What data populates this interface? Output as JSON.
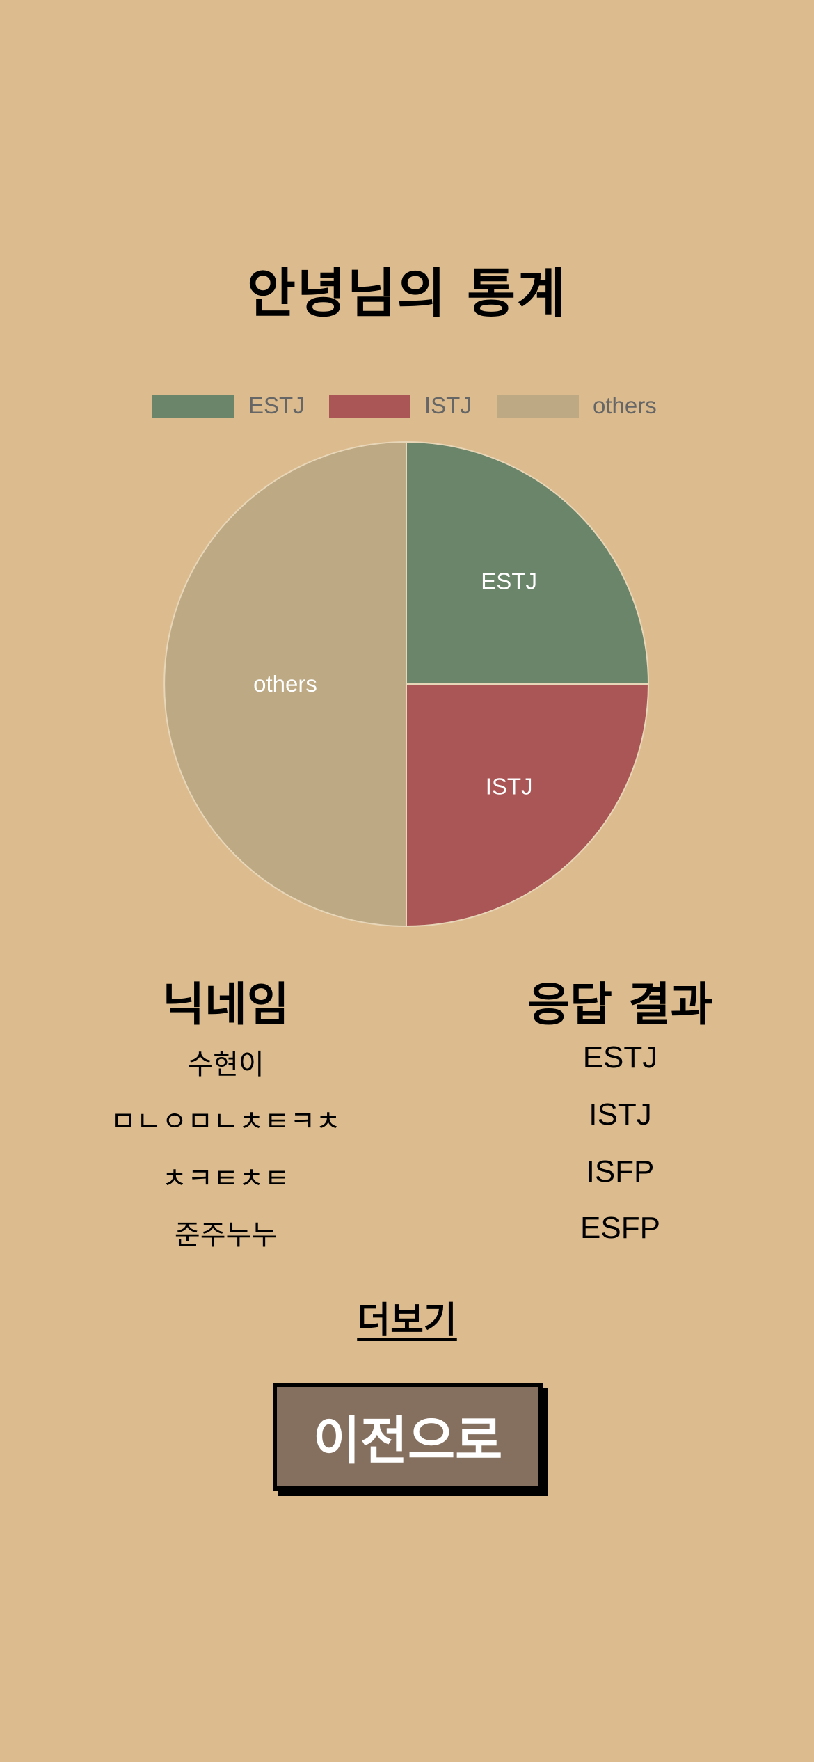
{
  "page": {
    "title": "안녕님의 통계"
  },
  "chart_data": {
    "type": "pie",
    "categories": [
      "ESTJ",
      "ISTJ",
      "others"
    ],
    "values": [
      1,
      1,
      2
    ],
    "colors": [
      "#6a8569",
      "#ab5656",
      "#bda984"
    ],
    "legend": "top",
    "slice_labels": [
      "ESTJ",
      "ISTJ",
      "others"
    ]
  },
  "table": {
    "headers": [
      "닉네임",
      "응답 결과"
    ],
    "rows": [
      {
        "nickname": "수현이",
        "result": "ESTJ"
      },
      {
        "nickname": "ㅁㄴㅇㅁㄴㅊㅌㅋㅊ",
        "result": "ISTJ"
      },
      {
        "nickname": "ㅊㅋㅌㅊㅌ",
        "result": "ISFP"
      },
      {
        "nickname": "준주누누",
        "result": "ESFP"
      }
    ]
  },
  "more_label": "더보기",
  "back_label": "이전으로",
  "colors": {
    "background": "#dcbc8e",
    "button": "#857060"
  }
}
